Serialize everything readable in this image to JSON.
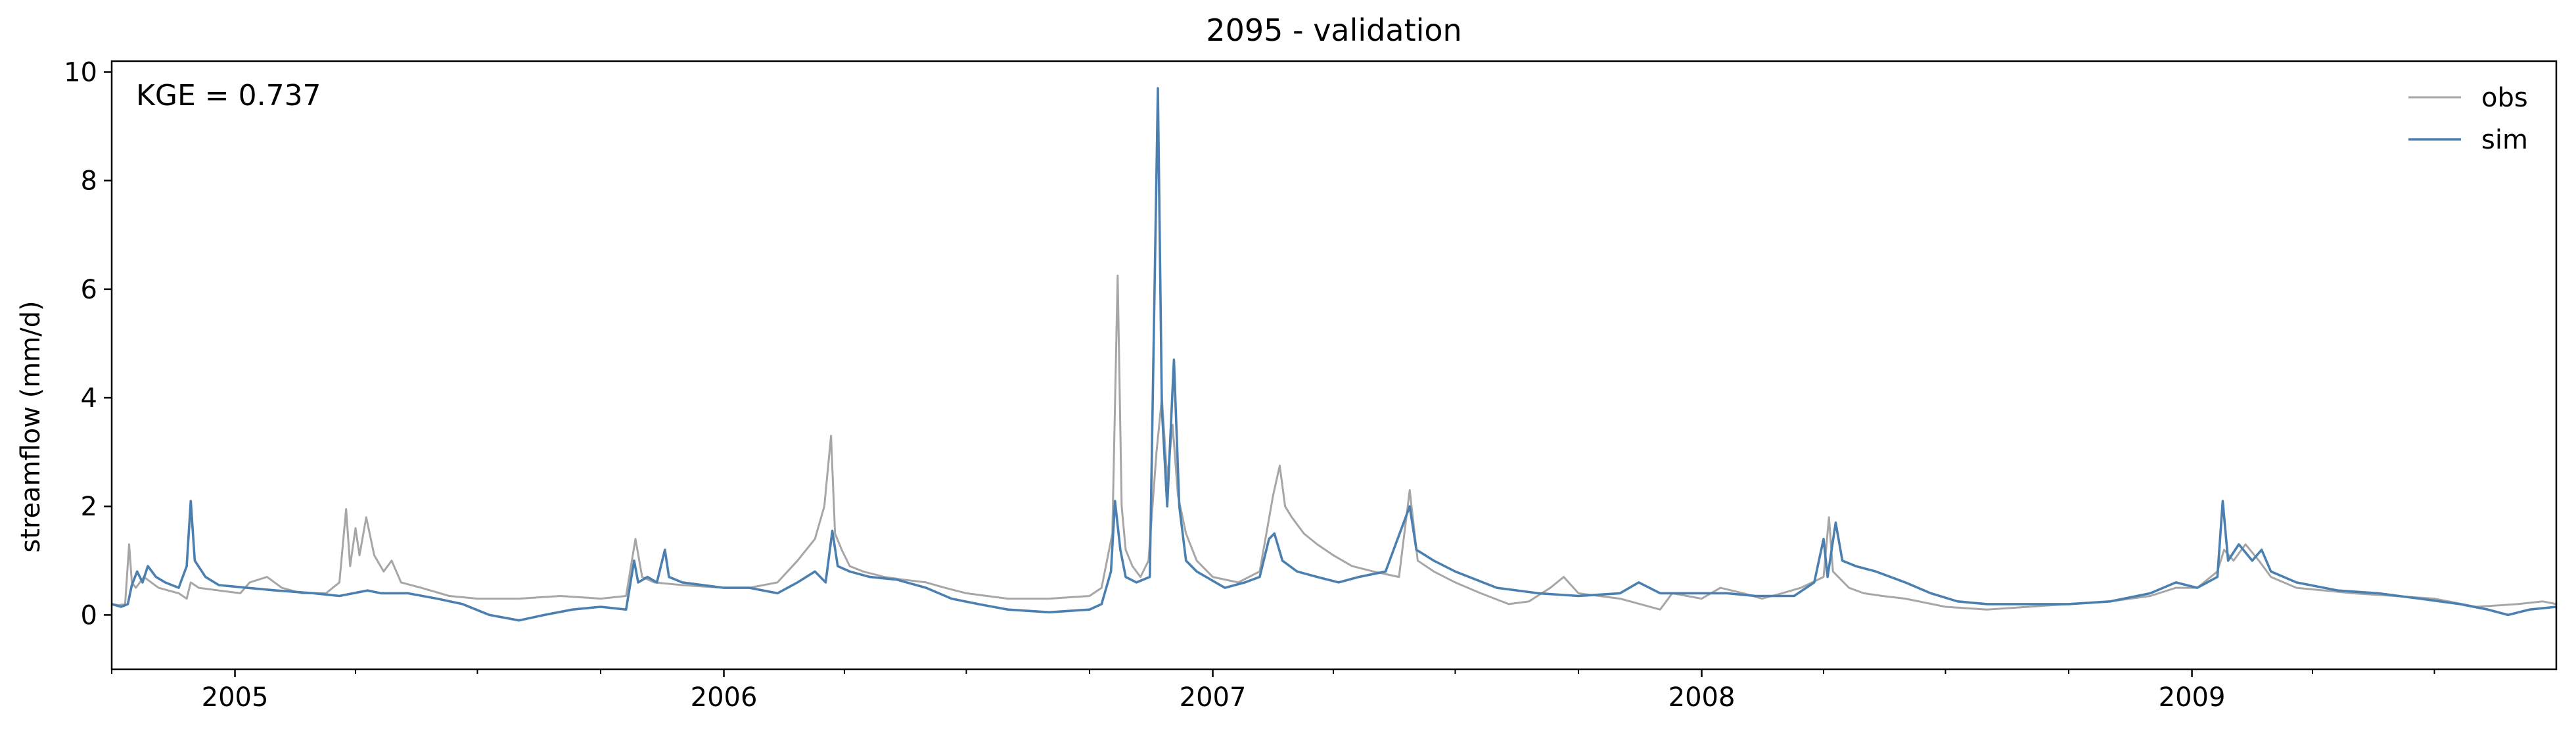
{
  "chart_data": {
    "type": "line",
    "title": "2095 - validation",
    "ylabel": "streamflow (mm/d)",
    "xlabel": "",
    "annotation": "KGE = 0.737",
    "xlim": [
      "2004-10-01",
      "2009-09-30"
    ],
    "ylim": [
      -1.0,
      10.2
    ],
    "yticks": [
      0,
      2,
      4,
      6,
      8,
      10
    ],
    "xticks": [
      {
        "date": "2005-01-01",
        "label": "2005"
      },
      {
        "date": "2006-01-01",
        "label": "2006"
      },
      {
        "date": "2007-01-01",
        "label": "2007"
      },
      {
        "date": "2008-01-01",
        "label": "2008"
      },
      {
        "date": "2009-01-01",
        "label": "2009"
      }
    ],
    "grid": false,
    "legend_position": "top-right",
    "series": [
      {
        "name": "obs",
        "color": "#a6a6a6",
        "points": [
          [
            "2004-10-01",
            0.2
          ],
          [
            "2004-10-06",
            0.18
          ],
          [
            "2004-10-11",
            0.2
          ],
          [
            "2004-10-14",
            1.3
          ],
          [
            "2004-10-16",
            0.6
          ],
          [
            "2004-10-19",
            0.5
          ],
          [
            "2004-10-25",
            0.7
          ],
          [
            "2004-11-05",
            0.5
          ],
          [
            "2004-11-20",
            0.4
          ],
          [
            "2004-11-26",
            0.3
          ],
          [
            "2004-11-29",
            0.6
          ],
          [
            "2004-12-05",
            0.5
          ],
          [
            "2004-12-20",
            0.45
          ],
          [
            "2005-01-05",
            0.4
          ],
          [
            "2005-01-12",
            0.6
          ],
          [
            "2005-01-25",
            0.7
          ],
          [
            "2005-02-05",
            0.5
          ],
          [
            "2005-02-20",
            0.4
          ],
          [
            "2005-03-10",
            0.4
          ],
          [
            "2005-03-20",
            0.6
          ],
          [
            "2005-03-25",
            1.95
          ],
          [
            "2005-03-28",
            0.9
          ],
          [
            "2005-04-01",
            1.6
          ],
          [
            "2005-04-04",
            1.1
          ],
          [
            "2005-04-09",
            1.8
          ],
          [
            "2005-04-15",
            1.1
          ],
          [
            "2005-04-22",
            0.8
          ],
          [
            "2005-04-28",
            1.0
          ],
          [
            "2005-05-05",
            0.6
          ],
          [
            "2005-05-20",
            0.5
          ],
          [
            "2005-06-10",
            0.35
          ],
          [
            "2005-07-01",
            0.3
          ],
          [
            "2005-08-01",
            0.3
          ],
          [
            "2005-09-01",
            0.35
          ],
          [
            "2005-10-01",
            0.3
          ],
          [
            "2005-10-20",
            0.35
          ],
          [
            "2005-10-27",
            1.4
          ],
          [
            "2005-11-01",
            0.7
          ],
          [
            "2005-11-10",
            0.6
          ],
          [
            "2005-12-01",
            0.55
          ],
          [
            "2006-01-01",
            0.5
          ],
          [
            "2006-01-20",
            0.5
          ],
          [
            "2006-02-10",
            0.6
          ],
          [
            "2006-02-25",
            1.0
          ],
          [
            "2006-03-10",
            1.4
          ],
          [
            "2006-03-17",
            2.0
          ],
          [
            "2006-03-22",
            3.3
          ],
          [
            "2006-03-25",
            1.5
          ],
          [
            "2006-03-30",
            1.2
          ],
          [
            "2006-04-05",
            0.9
          ],
          [
            "2006-04-15",
            0.8
          ],
          [
            "2006-05-01",
            0.7
          ],
          [
            "2006-05-15",
            0.65
          ],
          [
            "2006-06-01",
            0.6
          ],
          [
            "2006-06-15",
            0.5
          ],
          [
            "2006-07-01",
            0.4
          ],
          [
            "2006-08-01",
            0.3
          ],
          [
            "2006-09-01",
            0.3
          ],
          [
            "2006-10-01",
            0.35
          ],
          [
            "2006-10-10",
            0.5
          ],
          [
            "2006-10-18",
            1.5
          ],
          [
            "2006-10-22",
            6.25
          ],
          [
            "2006-10-25",
            2.0
          ],
          [
            "2006-10-28",
            1.2
          ],
          [
            "2006-11-02",
            0.9
          ],
          [
            "2006-11-08",
            0.7
          ],
          [
            "2006-11-14",
            1.0
          ],
          [
            "2006-11-20",
            3.0
          ],
          [
            "2006-11-24",
            4.0
          ],
          [
            "2006-11-28",
            2.5
          ],
          [
            "2006-12-02",
            3.5
          ],
          [
            "2006-12-06",
            2.2
          ],
          [
            "2006-12-12",
            1.5
          ],
          [
            "2006-12-20",
            1.0
          ],
          [
            "2007-01-01",
            0.7
          ],
          [
            "2007-01-20",
            0.6
          ],
          [
            "2007-02-05",
            0.8
          ],
          [
            "2007-02-15",
            2.2
          ],
          [
            "2007-02-20",
            2.75
          ],
          [
            "2007-02-24",
            2.0
          ],
          [
            "2007-03-01",
            1.8
          ],
          [
            "2007-03-10",
            1.5
          ],
          [
            "2007-03-20",
            1.3
          ],
          [
            "2007-04-01",
            1.1
          ],
          [
            "2007-04-15",
            0.9
          ],
          [
            "2007-05-01",
            0.8
          ],
          [
            "2007-05-20",
            0.7
          ],
          [
            "2007-05-28",
            2.3
          ],
          [
            "2007-06-03",
            1.0
          ],
          [
            "2007-06-15",
            0.8
          ],
          [
            "2007-07-01",
            0.6
          ],
          [
            "2007-07-20",
            0.4
          ],
          [
            "2007-08-10",
            0.2
          ],
          [
            "2007-08-25",
            0.25
          ],
          [
            "2007-09-10",
            0.5
          ],
          [
            "2007-09-20",
            0.7
          ],
          [
            "2007-10-01",
            0.4
          ],
          [
            "2007-11-01",
            0.3
          ],
          [
            "2007-12-01",
            0.1
          ],
          [
            "2007-12-10",
            0.4
          ],
          [
            "2008-01-01",
            0.3
          ],
          [
            "2008-01-15",
            0.5
          ],
          [
            "2008-02-01",
            0.4
          ],
          [
            "2008-02-15",
            0.3
          ],
          [
            "2008-03-01",
            0.4
          ],
          [
            "2008-03-15",
            0.5
          ],
          [
            "2008-04-01",
            0.7
          ],
          [
            "2008-04-05",
            1.8
          ],
          [
            "2008-04-08",
            0.8
          ],
          [
            "2008-04-20",
            0.5
          ],
          [
            "2008-05-01",
            0.4
          ],
          [
            "2008-05-15",
            0.35
          ],
          [
            "2008-06-01",
            0.3
          ],
          [
            "2008-07-01",
            0.15
          ],
          [
            "2008-08-01",
            0.1
          ],
          [
            "2008-09-01",
            0.15
          ],
          [
            "2008-10-01",
            0.2
          ],
          [
            "2008-11-01",
            0.25
          ],
          [
            "2008-12-01",
            0.35
          ],
          [
            "2008-12-20",
            0.5
          ],
          [
            "2009-01-05",
            0.5
          ],
          [
            "2009-01-20",
            0.8
          ],
          [
            "2009-01-25",
            1.2
          ],
          [
            "2009-02-01",
            1.0
          ],
          [
            "2009-02-10",
            1.3
          ],
          [
            "2009-02-20",
            1.0
          ],
          [
            "2009-03-01",
            0.7
          ],
          [
            "2009-03-20",
            0.5
          ],
          [
            "2009-04-10",
            0.45
          ],
          [
            "2009-05-01",
            0.4
          ],
          [
            "2009-06-01",
            0.35
          ],
          [
            "2009-07-01",
            0.3
          ],
          [
            "2009-08-01",
            0.15
          ],
          [
            "2009-09-01",
            0.2
          ],
          [
            "2009-09-20",
            0.25
          ],
          [
            "2009-09-30",
            0.2
          ]
        ]
      },
      {
        "name": "sim",
        "color": "#4a7fb0",
        "points": [
          [
            "2004-10-01",
            0.2
          ],
          [
            "2004-10-08",
            0.15
          ],
          [
            "2004-10-13",
            0.2
          ],
          [
            "2004-10-16",
            0.55
          ],
          [
            "2004-10-20",
            0.8
          ],
          [
            "2004-10-24",
            0.6
          ],
          [
            "2004-10-28",
            0.9
          ],
          [
            "2004-11-03",
            0.7
          ],
          [
            "2004-11-10",
            0.6
          ],
          [
            "2004-11-20",
            0.5
          ],
          [
            "2004-11-26",
            0.9
          ],
          [
            "2004-11-29",
            2.1
          ],
          [
            "2004-12-02",
            1.0
          ],
          [
            "2004-12-10",
            0.7
          ],
          [
            "2004-12-20",
            0.55
          ],
          [
            "2005-01-10",
            0.5
          ],
          [
            "2005-02-01",
            0.45
          ],
          [
            "2005-03-01",
            0.4
          ],
          [
            "2005-03-20",
            0.35
          ],
          [
            "2005-04-10",
            0.45
          ],
          [
            "2005-04-20",
            0.4
          ],
          [
            "2005-05-10",
            0.4
          ],
          [
            "2005-06-01",
            0.3
          ],
          [
            "2005-06-20",
            0.2
          ],
          [
            "2005-07-10",
            0.0
          ],
          [
            "2005-08-01",
            -0.1
          ],
          [
            "2005-08-20",
            0.0
          ],
          [
            "2005-09-10",
            0.1
          ],
          [
            "2005-10-01",
            0.15
          ],
          [
            "2005-10-20",
            0.1
          ],
          [
            "2005-10-26",
            1.0
          ],
          [
            "2005-10-29",
            0.6
          ],
          [
            "2005-11-05",
            0.7
          ],
          [
            "2005-11-12",
            0.6
          ],
          [
            "2005-11-18",
            1.2
          ],
          [
            "2005-11-21",
            0.7
          ],
          [
            "2005-12-01",
            0.6
          ],
          [
            "2006-01-01",
            0.5
          ],
          [
            "2006-01-20",
            0.5
          ],
          [
            "2006-02-10",
            0.4
          ],
          [
            "2006-02-25",
            0.6
          ],
          [
            "2006-03-10",
            0.8
          ],
          [
            "2006-03-18",
            0.6
          ],
          [
            "2006-03-23",
            1.55
          ],
          [
            "2006-03-27",
            0.9
          ],
          [
            "2006-04-05",
            0.8
          ],
          [
            "2006-04-20",
            0.7
          ],
          [
            "2006-05-10",
            0.65
          ],
          [
            "2006-06-01",
            0.5
          ],
          [
            "2006-06-20",
            0.3
          ],
          [
            "2006-07-10",
            0.2
          ],
          [
            "2006-08-01",
            0.1
          ],
          [
            "2006-09-01",
            0.05
          ],
          [
            "2006-10-01",
            0.1
          ],
          [
            "2006-10-10",
            0.2
          ],
          [
            "2006-10-17",
            0.8
          ],
          [
            "2006-10-20",
            2.1
          ],
          [
            "2006-10-24",
            1.2
          ],
          [
            "2006-10-28",
            0.7
          ],
          [
            "2006-11-05",
            0.6
          ],
          [
            "2006-11-15",
            0.7
          ],
          [
            "2006-11-21",
            9.7
          ],
          [
            "2006-11-24",
            3.8
          ],
          [
            "2006-11-28",
            2.0
          ],
          [
            "2006-12-03",
            4.7
          ],
          [
            "2006-12-07",
            2.0
          ],
          [
            "2006-12-12",
            1.0
          ],
          [
            "2006-12-20",
            0.8
          ],
          [
            "2007-01-10",
            0.5
          ],
          [
            "2007-01-25",
            0.6
          ],
          [
            "2007-02-05",
            0.7
          ],
          [
            "2007-02-12",
            1.4
          ],
          [
            "2007-02-16",
            1.5
          ],
          [
            "2007-02-22",
            1.0
          ],
          [
            "2007-03-05",
            0.8
          ],
          [
            "2007-03-20",
            0.7
          ],
          [
            "2007-04-05",
            0.6
          ],
          [
            "2007-04-20",
            0.7
          ],
          [
            "2007-05-10",
            0.8
          ],
          [
            "2007-05-28",
            2.0
          ],
          [
            "2007-06-02",
            1.2
          ],
          [
            "2007-06-15",
            1.0
          ],
          [
            "2007-07-01",
            0.8
          ],
          [
            "2007-08-01",
            0.5
          ],
          [
            "2007-09-01",
            0.4
          ],
          [
            "2007-10-01",
            0.35
          ],
          [
            "2007-11-01",
            0.4
          ],
          [
            "2007-11-15",
            0.6
          ],
          [
            "2007-12-01",
            0.4
          ],
          [
            "2008-01-01",
            0.4
          ],
          [
            "2008-01-20",
            0.4
          ],
          [
            "2008-02-10",
            0.35
          ],
          [
            "2008-03-10",
            0.35
          ],
          [
            "2008-03-25",
            0.6
          ],
          [
            "2008-04-01",
            1.4
          ],
          [
            "2008-04-04",
            0.7
          ],
          [
            "2008-04-10",
            1.7
          ],
          [
            "2008-04-15",
            1.0
          ],
          [
            "2008-04-25",
            0.9
          ],
          [
            "2008-05-10",
            0.8
          ],
          [
            "2008-06-01",
            0.6
          ],
          [
            "2008-06-20",
            0.4
          ],
          [
            "2008-07-10",
            0.25
          ],
          [
            "2008-08-01",
            0.2
          ],
          [
            "2008-09-01",
            0.2
          ],
          [
            "2008-10-01",
            0.2
          ],
          [
            "2008-11-01",
            0.25
          ],
          [
            "2008-12-01",
            0.4
          ],
          [
            "2008-12-20",
            0.6
          ],
          [
            "2009-01-05",
            0.5
          ],
          [
            "2009-01-20",
            0.7
          ],
          [
            "2009-01-24",
            2.1
          ],
          [
            "2009-01-28",
            1.0
          ],
          [
            "2009-02-05",
            1.3
          ],
          [
            "2009-02-15",
            1.0
          ],
          [
            "2009-02-22",
            1.2
          ],
          [
            "2009-03-01",
            0.8
          ],
          [
            "2009-03-20",
            0.6
          ],
          [
            "2009-04-20",
            0.45
          ],
          [
            "2009-05-20",
            0.4
          ],
          [
            "2009-06-20",
            0.3
          ],
          [
            "2009-07-20",
            0.2
          ],
          [
            "2009-08-10",
            0.1
          ],
          [
            "2009-08-25",
            0.0
          ],
          [
            "2009-09-10",
            0.1
          ],
          [
            "2009-09-30",
            0.15
          ]
        ]
      }
    ]
  }
}
